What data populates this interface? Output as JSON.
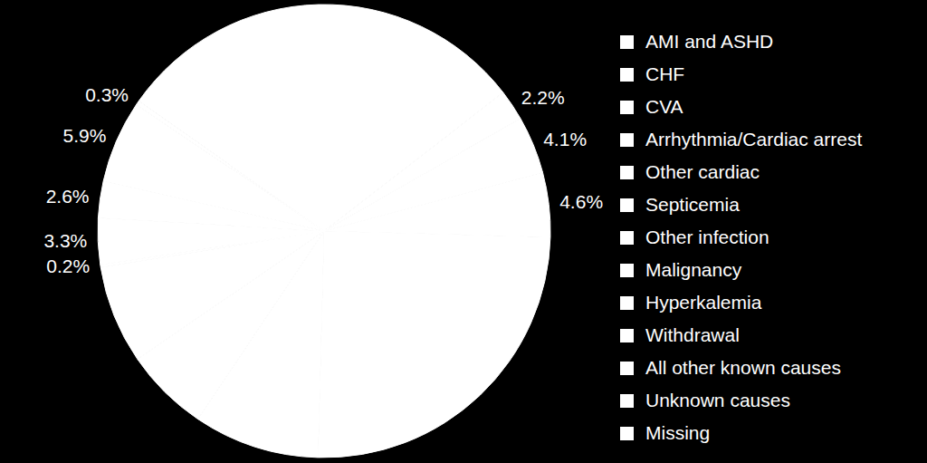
{
  "chart_data": {
    "type": "pie",
    "categories": [
      "AMI and ASHD",
      "CHF",
      "CVA",
      "Arrhythmia/Cardiac arrest",
      "Other cardiac",
      "Septicemia",
      "Other infection",
      "Malignancy",
      "Hyperkalemia",
      "Withdrawal",
      "All other known causes",
      "Unknown causes",
      "Missing"
    ],
    "values": [
      29.8,
      2.2,
      4.1,
      4.6,
      25.0,
      9.0,
      6.0,
      7.0,
      0.2,
      3.3,
      2.6,
      5.9,
      0.3
    ],
    "value_labels": [
      null,
      "2.2%",
      "4.1%",
      "4.6%",
      null,
      null,
      null,
      null,
      "0.2%",
      "3.3%",
      "2.6%",
      "5.9%",
      "0.3%"
    ],
    "color": "#ffffff",
    "data_labels": true,
    "legend": "right"
  }
}
